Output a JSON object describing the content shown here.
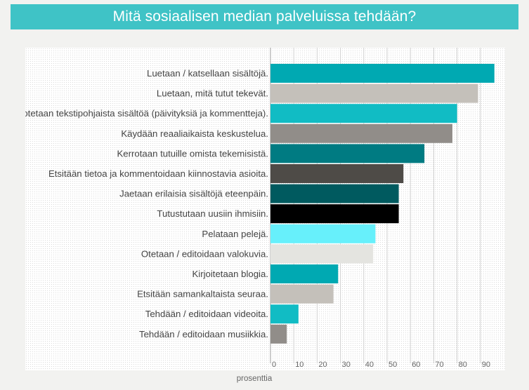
{
  "title": "Mitä sosiaalisen median palveluissa tehdään?",
  "chart_data": {
    "type": "bar",
    "orientation": "horizontal",
    "title": "Mitä sosiaalisen median palveluissa tehdään?",
    "xlabel": "prosenttia",
    "ylabel": "",
    "xlim": [
      0,
      96
    ],
    "xticks": [
      0,
      10,
      20,
      30,
      40,
      50,
      60,
      70,
      80,
      90
    ],
    "grid": true,
    "categories": [
      "Luetaan / katsellaan sisältöjä.",
      "Luetaan, mitä tutut tekevät.",
      "Tuotetaan tekstipohjaista sisältöä (päivityksiä ja kommentteja).",
      "Käydään reaaliaikaista keskustelua.",
      "Kerrotaan tutuille omista tekemisistä.",
      "Etsitään tietoa ja kommentoidaan kiinnostavia asioita.",
      "Jaetaan erilaisia sisältöjä eteenpäin.",
      "Tutustutaan uusiin ihmisiin.",
      "Pelataan pelejä.",
      "Otetaan / editoidaan valokuvia.",
      "Kirjoitetaan blogia.",
      "Etsitään samankaltaista seuraa.",
      "Tehdään / editoidaan videoita.",
      "Tehdään / editoidaan musiikkia."
    ],
    "values": [
      96,
      89,
      80,
      78,
      66,
      57,
      55,
      55,
      45,
      44,
      29,
      27,
      12,
      7
    ],
    "colors": [
      "#00a9b2",
      "#c4c0ba",
      "#11bcc4",
      "#918d89",
      "#007b82",
      "#4e4b47",
      "#005a5f",
      "#000000",
      "#67f0fb",
      "#e4e4e0",
      "#00a9b2",
      "#c4c0ba",
      "#11bcc4",
      "#918d89"
    ]
  }
}
